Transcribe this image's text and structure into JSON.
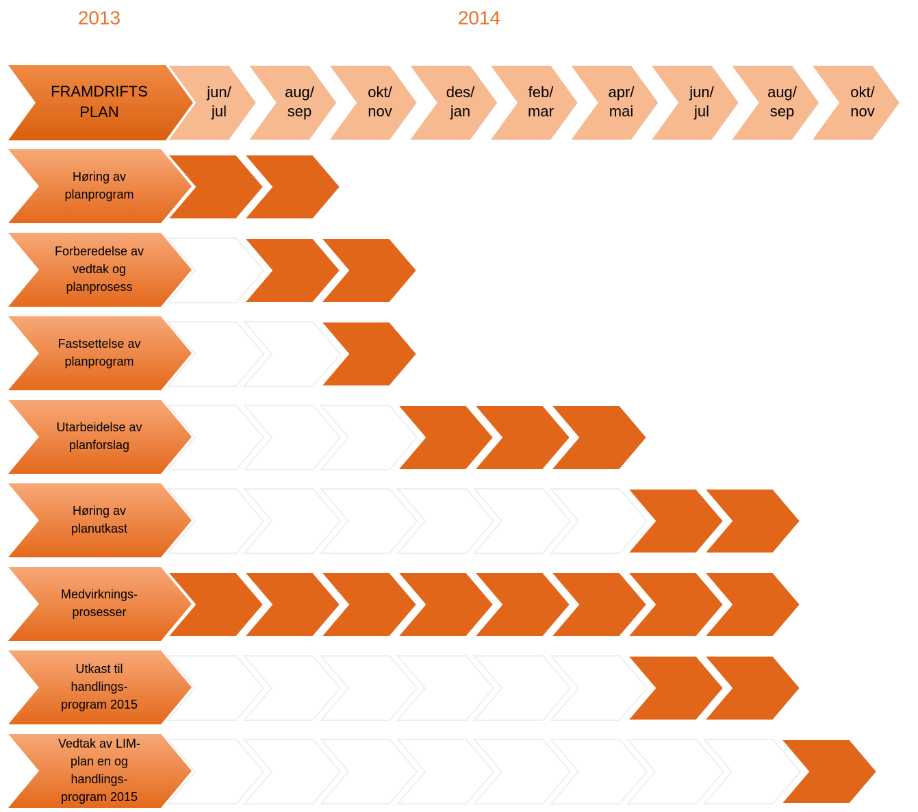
{
  "years": [
    "2013",
    "2014"
  ],
  "header": {
    "label": [
      "FRAMDRIFTS",
      "PLAN"
    ]
  },
  "periods": [
    [
      "jun/",
      "jul"
    ],
    [
      "aug/",
      "sep"
    ],
    [
      "okt/",
      "nov"
    ],
    [
      "des/",
      "jan"
    ],
    [
      "feb/",
      "mar"
    ],
    [
      "apr/",
      "mai"
    ],
    [
      "jun/",
      "jul"
    ],
    [
      "aug/",
      "sep"
    ],
    [
      "okt/",
      "nov"
    ]
  ],
  "tasks": [
    {
      "label": [
        "Høring av",
        "planprogram"
      ],
      "active": [
        true,
        true,
        false,
        false,
        false,
        false,
        false,
        false,
        false
      ]
    },
    {
      "label": [
        "Forberedelse av",
        "vedtak og",
        "planprosess"
      ],
      "active": [
        false,
        true,
        true,
        false,
        false,
        false,
        false,
        false,
        false
      ]
    },
    {
      "label": [
        "Fastsettelse av",
        "planprogram"
      ],
      "active": [
        false,
        false,
        true,
        false,
        false,
        false,
        false,
        false,
        false
      ]
    },
    {
      "label": [
        "Utarbeidelse av",
        "planforslag"
      ],
      "active": [
        false,
        false,
        false,
        true,
        true,
        true,
        false,
        false,
        false
      ]
    },
    {
      "label": [
        "Høring av",
        "planutkast"
      ],
      "active": [
        false,
        false,
        false,
        false,
        false,
        false,
        true,
        true,
        false
      ]
    },
    {
      "label": [
        "Medvirknings-",
        "prosesser"
      ],
      "active": [
        true,
        true,
        true,
        true,
        true,
        true,
        true,
        true,
        false
      ]
    },
    {
      "label": [
        "Utkast til",
        "handlings-",
        "program 2015"
      ],
      "active": [
        false,
        false,
        false,
        false,
        false,
        false,
        true,
        true,
        false
      ]
    },
    {
      "label": [
        "Vedtak av LIM-",
        "plan en og",
        "handlings-",
        "program 2015"
      ],
      "active": [
        false,
        false,
        false,
        false,
        false,
        false,
        false,
        false,
        true
      ]
    }
  ]
}
